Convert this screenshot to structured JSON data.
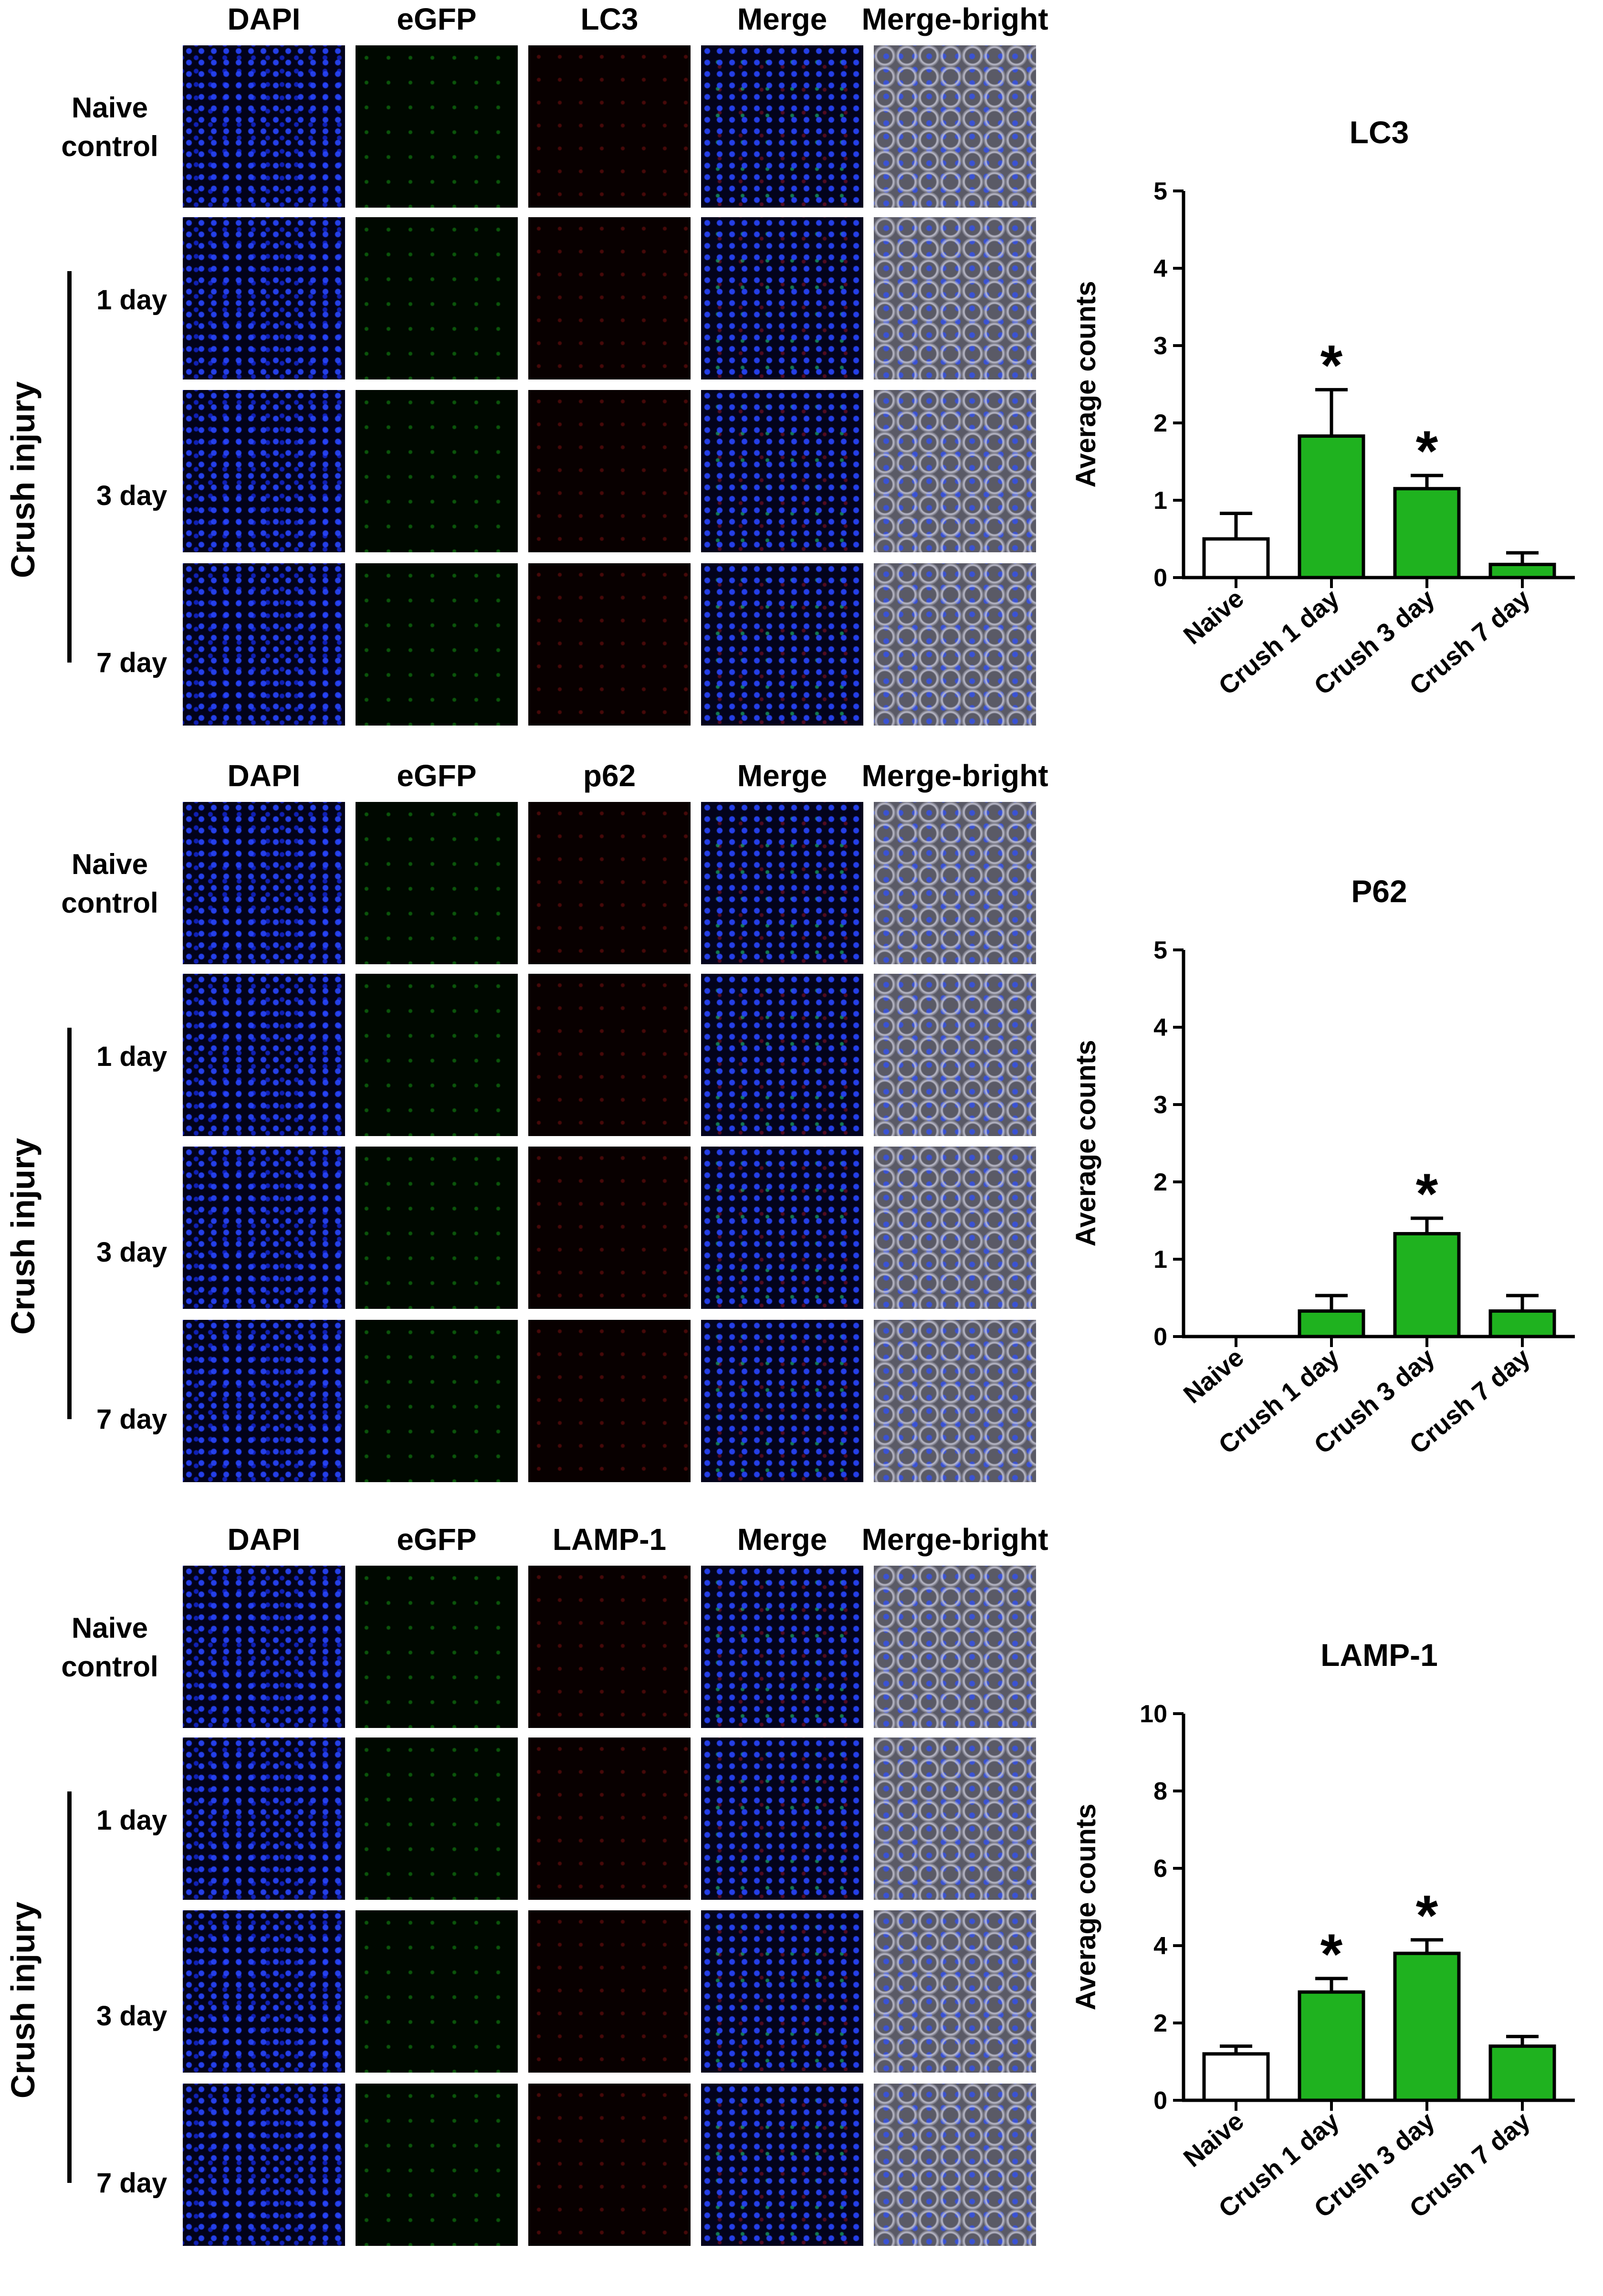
{
  "panels": [
    {
      "columns": [
        "DAPI",
        "eGFP",
        "LC3",
        "Merge",
        "Merge-bright"
      ],
      "naive_label": [
        "Naive",
        "control"
      ],
      "group_label": "Crush injury",
      "days": [
        "1 day",
        "3 day",
        "7 day"
      ]
    },
    {
      "columns": [
        "DAPI",
        "eGFP",
        "p62",
        "Merge",
        "Merge-bright"
      ],
      "naive_label": [
        "Naive",
        "control"
      ],
      "group_label": "Crush injury",
      "days": [
        "1 day",
        "3 day",
        "7 day"
      ]
    },
    {
      "columns": [
        "DAPI",
        "eGFP",
        "LAMP-1",
        "Merge",
        "Merge-bright"
      ],
      "naive_label": [
        "Naive",
        "control"
      ],
      "group_label": "Crush injury",
      "days": [
        "1 day",
        "3 day",
        "7 day"
      ]
    }
  ],
  "chart_data": [
    {
      "type": "bar",
      "title": "LC3",
      "ylabel": "Average counts",
      "xlabel": "",
      "categories": [
        "Naive",
        "Crush 1 day",
        "Crush 3 day",
        "Crush 7 day"
      ],
      "values": [
        0.5,
        1.83,
        1.15,
        0.17
      ],
      "errors": [
        0.33,
        0.6,
        0.17,
        0.15
      ],
      "significant": [
        false,
        true,
        true,
        false
      ],
      "bar_colors": [
        "#ffffff",
        "#1fb21f",
        "#1fb21f",
        "#1fb21f"
      ],
      "ylim": [
        0,
        5
      ],
      "yticks": [
        "0",
        "1",
        "2",
        "3",
        "4",
        "5"
      ],
      "marker": "*"
    },
    {
      "type": "bar",
      "title": "P62",
      "ylabel": "Average counts",
      "xlabel": "",
      "categories": [
        "Naive",
        "Crush 1 day",
        "Crush 3 day",
        "Crush 7 day"
      ],
      "values": [
        0,
        0.33,
        1.33,
        0.33
      ],
      "errors": [
        0,
        0.2,
        0.2,
        0.2
      ],
      "significant": [
        false,
        false,
        true,
        false
      ],
      "bar_colors": [
        "#ffffff",
        "#1fb21f",
        "#1fb21f",
        "#1fb21f"
      ],
      "ylim": [
        0,
        5
      ],
      "yticks": [
        "0",
        "1",
        "2",
        "3",
        "4",
        "5"
      ],
      "marker": "*"
    },
    {
      "type": "bar",
      "title": "LAMP-1",
      "ylabel": "Average counts",
      "xlabel": "",
      "categories": [
        "Naive",
        "Crush 1 day",
        "Crush 3 day",
        "Crush 7 day"
      ],
      "values": [
        1.2,
        2.8,
        3.8,
        1.4
      ],
      "errors": [
        0.2,
        0.35,
        0.35,
        0.25
      ],
      "significant": [
        false,
        true,
        true,
        false
      ],
      "bar_colors": [
        "#ffffff",
        "#1fb21f",
        "#1fb21f",
        "#1fb21f"
      ],
      "ylim": [
        0,
        10
      ],
      "yticks": [
        "0",
        "2",
        "4",
        "6",
        "8",
        "10"
      ],
      "marker": "*"
    }
  ]
}
